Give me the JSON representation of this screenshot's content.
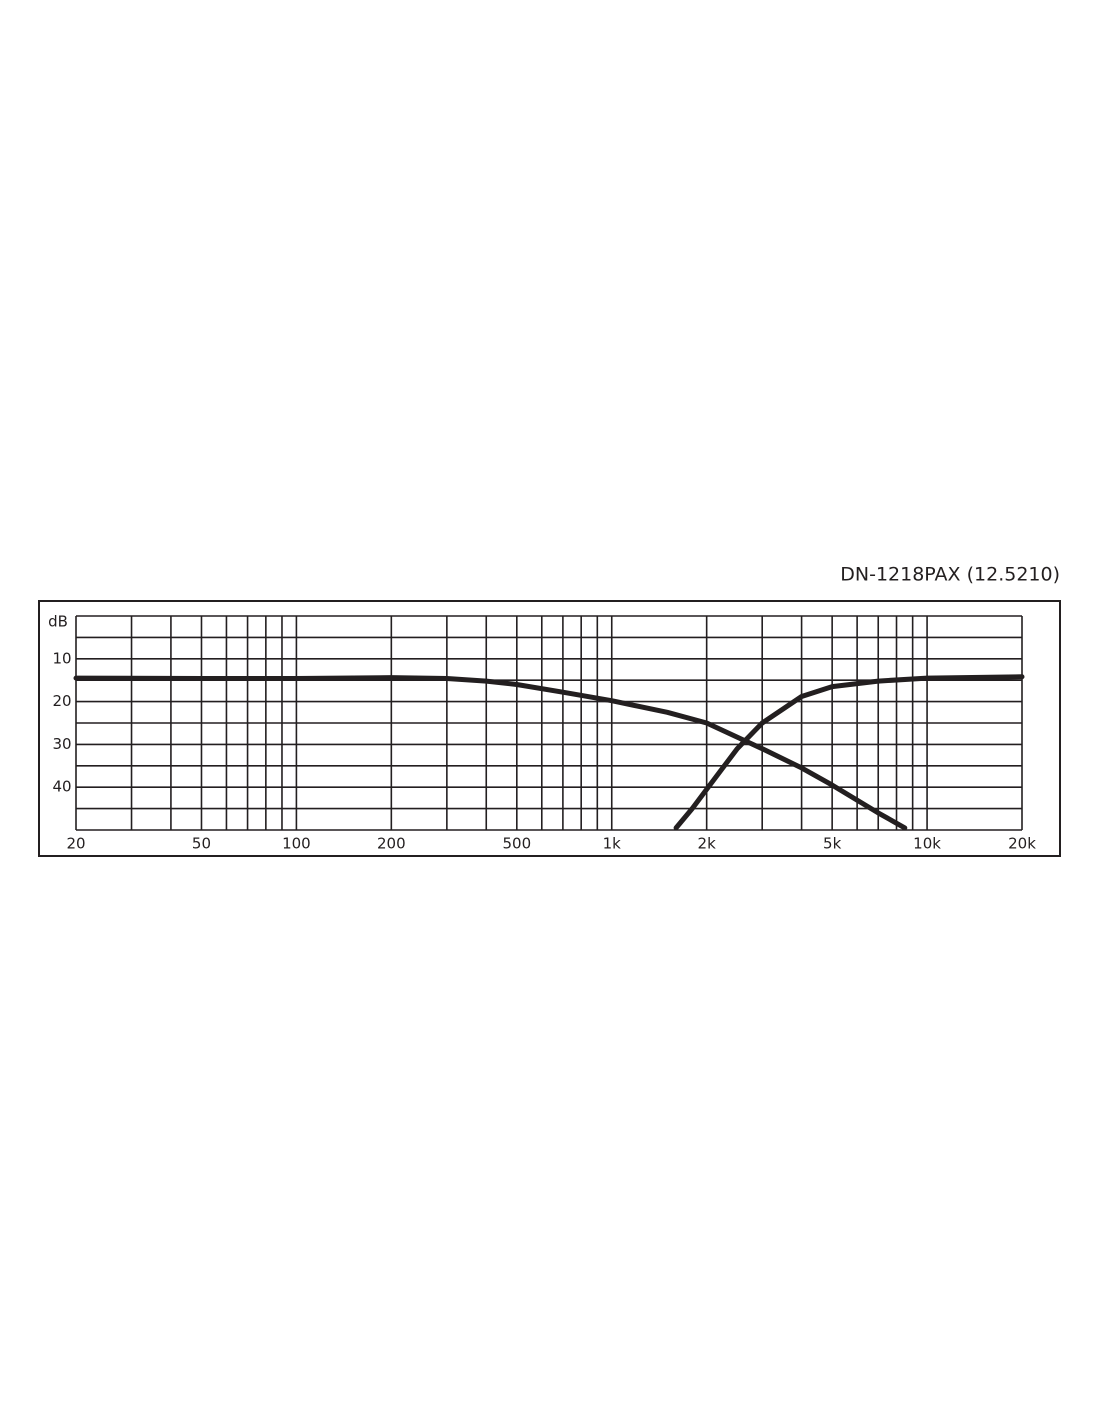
{
  "chart_data": {
    "type": "line",
    "title": "DN-1218PAX (12.5210)",
    "y_label": "dB",
    "xscale": "log",
    "xlim": [
      20,
      20000
    ],
    "xticks": [
      20,
      50,
      100,
      200,
      500,
      {
        "value": 1000,
        "label": "1k"
      },
      {
        "value": 2000,
        "label": "2k"
      },
      {
        "value": 5000,
        "label": "5k"
      },
      {
        "value": 10000,
        "label": "10k"
      },
      {
        "value": 20000,
        "label": "20k"
      }
    ],
    "xgrid": [
      20,
      30,
      40,
      50,
      60,
      70,
      80,
      90,
      100,
      200,
      300,
      400,
      500,
      600,
      700,
      800,
      900,
      1000,
      2000,
      3000,
      4000,
      5000,
      6000,
      7000,
      8000,
      9000,
      10000,
      20000
    ],
    "ylim": [
      0,
      50
    ],
    "yinverted": true,
    "yticks": [
      10,
      20,
      30,
      40
    ],
    "ygrid": [
      0,
      5,
      10,
      15,
      20,
      25,
      30,
      35,
      40,
      45,
      50
    ],
    "series": [
      {
        "color": "#231f20",
        "x": [
          20,
          50,
          100,
          200,
          300,
          400,
          500,
          700,
          1000,
          1500,
          2000,
          3000,
          4000,
          5000,
          7000,
          8500
        ],
        "values": [
          14.5,
          14.6,
          14.6,
          14.4,
          14.6,
          15.2,
          16,
          17.8,
          19.8,
          22.5,
          25,
          31,
          35.5,
          39.5,
          46,
          49.5
        ]
      },
      {
        "color": "#231f20",
        "x": [
          1600,
          1800,
          2000,
          2500,
          3000,
          4000,
          5000,
          7000,
          10000,
          20000
        ],
        "values": [
          49.5,
          45,
          40.5,
          31,
          25,
          18.8,
          16.5,
          15.2,
          14.5,
          14.2
        ]
      }
    ]
  }
}
